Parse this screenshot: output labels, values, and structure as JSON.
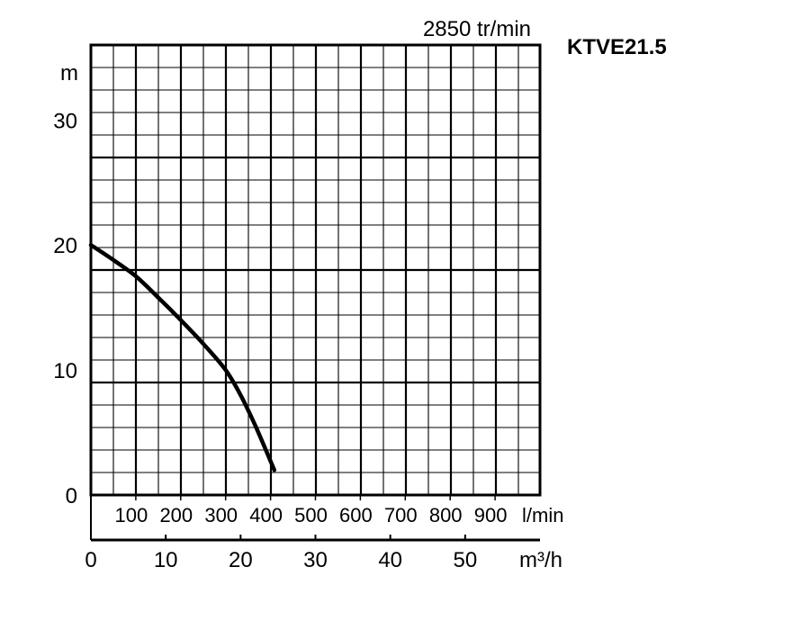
{
  "speed_label": "2850 tr/min",
  "model_label": "KTVE21.5",
  "chart_data": {
    "type": "line",
    "ylabel": "m",
    "ylim": [
      0,
      36
    ],
    "yticks": [
      0,
      10,
      20,
      30
    ],
    "grid": true,
    "flow_lpm": {
      "label": "l/min",
      "ticks": [
        100,
        200,
        300,
        400,
        500,
        600,
        700,
        800,
        900
      ],
      "range": [
        0,
        1000
      ]
    },
    "flow_m3h": {
      "label": "m³/h",
      "ticks": [
        0,
        10,
        20,
        30,
        40,
        50
      ],
      "range": [
        0,
        60
      ]
    },
    "series": [
      {
        "x_m3h": [
          0,
          3,
          6,
          9,
          12,
          15,
          18,
          20,
          22,
          24.5
        ],
        "y_m": [
          20,
          18.8,
          17.5,
          15.8,
          14,
          12.1,
          10,
          8,
          5.5,
          2
        ]
      }
    ]
  }
}
